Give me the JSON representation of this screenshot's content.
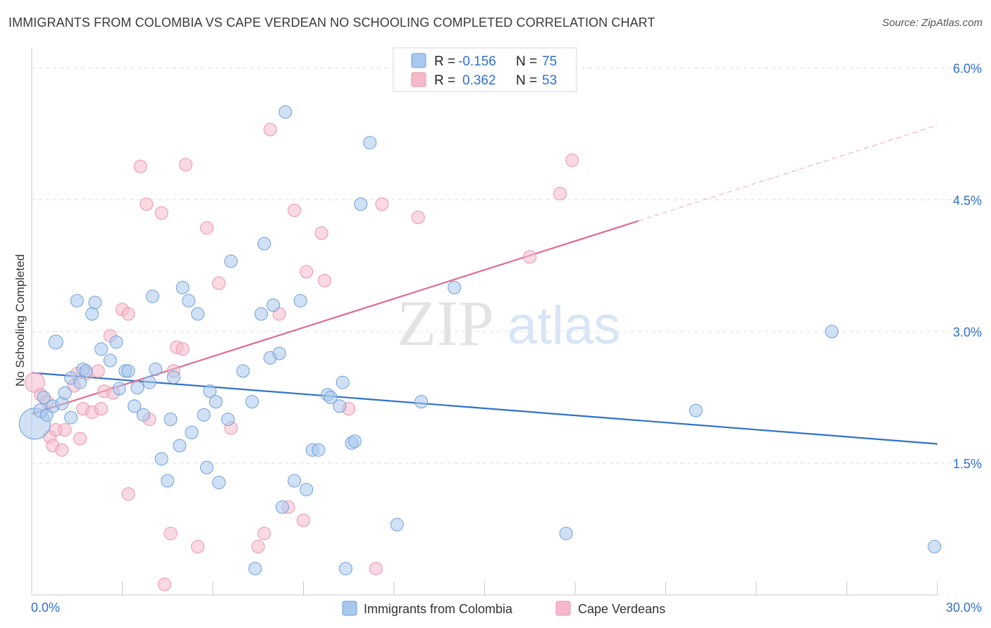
{
  "title": "IMMIGRANTS FROM COLOMBIA VS CAPE VERDEAN NO SCHOOLING COMPLETED CORRELATION CHART",
  "source": "Source: ZipAtlas.com",
  "watermark": {
    "zip": "ZIP",
    "atlas": "atlas"
  },
  "colors": {
    "blue_fill": "#a9c8ee",
    "blue_stroke": "#6f9fd8",
    "blue_line": "#2f72c8",
    "pink_fill": "#f6b9cb",
    "pink_stroke": "#e894ad",
    "pink_line": "#e06b93",
    "value_text": "#2f6fd0",
    "grid": "#dcdcdc"
  },
  "legend_top": {
    "rows": [
      {
        "r_label": "R =",
        "r_value": "-0.156",
        "n_label": "N =",
        "n_value": "75"
      },
      {
        "r_label": "R =",
        "r_value": "0.362",
        "n_label": "N =",
        "n_value": "53"
      }
    ]
  },
  "legend_bottom": [
    "Immigrants from Colombia",
    "Cape Verdeans"
  ],
  "chart_data": {
    "type": "scatter",
    "title": "IMMIGRANTS FROM COLOMBIA VS CAPE VERDEAN NO SCHOOLING COMPLETED CORRELATION CHART",
    "xlabel": "",
    "ylabel": "No Schooling Completed",
    "xlim": [
      0,
      30
    ],
    "ylim": [
      0,
      6.15
    ],
    "x_tick_labels": [
      "0.0%",
      "30.0%"
    ],
    "y_ticks": [
      1.5,
      3.0,
      4.5,
      6.0
    ],
    "y_tick_labels": [
      "1.5%",
      "3.0%",
      "4.5%",
      "6.0%"
    ],
    "grid": true,
    "legend": "bottom",
    "series": [
      {
        "name": "Immigrants from Colombia",
        "color": "#a9c8ee",
        "trend": {
          "x": [
            0,
            30
          ],
          "y": [
            2.53,
            1.72
          ]
        },
        "points": [
          [
            0.1,
            1.95,
            22
          ],
          [
            0.3,
            2.1,
            10
          ],
          [
            0.4,
            2.25,
            9
          ],
          [
            0.5,
            2.05,
            9
          ],
          [
            0.7,
            2.15,
            9
          ],
          [
            0.8,
            2.88,
            10
          ],
          [
            1.0,
            2.18,
            9
          ],
          [
            1.1,
            2.3,
            9
          ],
          [
            1.3,
            2.02,
            9
          ],
          [
            1.3,
            2.47,
            9
          ],
          [
            1.5,
            3.35,
            9
          ],
          [
            1.6,
            2.42,
            9
          ],
          [
            1.7,
            2.57,
            9
          ],
          [
            1.8,
            2.55,
            9
          ],
          [
            2.0,
            3.2,
            9
          ],
          [
            2.1,
            3.33,
            9
          ],
          [
            2.3,
            2.8,
            9
          ],
          [
            2.6,
            2.67,
            9
          ],
          [
            2.8,
            2.88,
            9
          ],
          [
            2.9,
            2.35,
            9
          ],
          [
            3.1,
            2.55,
            9
          ],
          [
            3.2,
            2.55,
            9
          ],
          [
            3.4,
            2.15,
            9
          ],
          [
            3.5,
            2.36,
            9
          ],
          [
            3.7,
            2.05,
            9
          ],
          [
            3.9,
            2.42,
            9
          ],
          [
            4.0,
            3.4,
            9
          ],
          [
            4.1,
            2.57,
            9
          ],
          [
            4.3,
            1.55,
            9
          ],
          [
            4.5,
            1.3,
            9
          ],
          [
            4.6,
            2.0,
            9
          ],
          [
            4.7,
            2.48,
            9
          ],
          [
            4.9,
            1.7,
            9
          ],
          [
            5.0,
            3.5,
            9
          ],
          [
            5.2,
            3.35,
            9
          ],
          [
            5.3,
            1.85,
            9
          ],
          [
            5.5,
            3.2,
            9
          ],
          [
            5.7,
            2.05,
            9
          ],
          [
            5.8,
            1.45,
            9
          ],
          [
            5.9,
            2.32,
            9
          ],
          [
            6.1,
            2.2,
            9
          ],
          [
            6.2,
            1.28,
            9
          ],
          [
            6.5,
            2.0,
            9
          ],
          [
            6.6,
            3.8,
            9
          ],
          [
            7.0,
            2.55,
            9
          ],
          [
            7.3,
            2.2,
            9
          ],
          [
            7.4,
            0.3,
            9
          ],
          [
            7.6,
            3.2,
            9
          ],
          [
            7.7,
            4.0,
            9
          ],
          [
            7.9,
            2.7,
            9
          ],
          [
            8.0,
            3.3,
            9
          ],
          [
            8.2,
            2.75,
            9
          ],
          [
            8.3,
            1.0,
            9
          ],
          [
            8.4,
            5.5,
            9
          ],
          [
            8.7,
            1.3,
            9
          ],
          [
            8.9,
            3.35,
            9
          ],
          [
            9.1,
            1.2,
            9
          ],
          [
            9.3,
            1.65,
            9
          ],
          [
            9.5,
            1.65,
            9
          ],
          [
            9.8,
            2.28,
            9
          ],
          [
            9.9,
            2.25,
            9
          ],
          [
            10.2,
            2.15,
            9
          ],
          [
            10.3,
            2.42,
            9
          ],
          [
            10.4,
            0.3,
            9
          ],
          [
            10.6,
            1.73,
            9
          ],
          [
            10.7,
            1.75,
            9
          ],
          [
            10.9,
            4.45,
            9
          ],
          [
            11.2,
            5.15,
            9
          ],
          [
            12.1,
            0.8,
            9
          ],
          [
            12.9,
            2.2,
            9
          ],
          [
            14.0,
            3.5,
            9
          ],
          [
            17.7,
            0.7,
            9
          ],
          [
            22.0,
            2.1,
            9
          ],
          [
            26.5,
            3.0,
            9
          ],
          [
            29.9,
            0.55,
            9
          ]
        ]
      },
      {
        "name": "Cape Verdeans",
        "color": "#f6b9cb",
        "trend": {
          "x": [
            0,
            20.1
          ],
          "y": [
            2.06,
            4.26
          ],
          "dashed_x": [
            20.1,
            30
          ],
          "dashed_y": [
            4.26,
            5.35
          ]
        },
        "points": [
          [
            0.1,
            2.42,
            14
          ],
          [
            0.3,
            2.28,
            9
          ],
          [
            0.5,
            2.2,
            9
          ],
          [
            0.6,
            1.8,
            9
          ],
          [
            0.7,
            1.7,
            9
          ],
          [
            0.8,
            1.88,
            9
          ],
          [
            1.0,
            1.65,
            9
          ],
          [
            1.1,
            1.88,
            9
          ],
          [
            1.4,
            2.38,
            9
          ],
          [
            1.5,
            2.52,
            9
          ],
          [
            1.6,
            1.78,
            9
          ],
          [
            1.7,
            2.12,
            9
          ],
          [
            1.8,
            2.52,
            9
          ],
          [
            2.0,
            2.08,
            9
          ],
          [
            2.2,
            2.55,
            9
          ],
          [
            2.3,
            2.12,
            9
          ],
          [
            2.4,
            2.32,
            9
          ],
          [
            2.6,
            2.95,
            9
          ],
          [
            2.7,
            2.3,
            9
          ],
          [
            3.0,
            3.25,
            9
          ],
          [
            3.2,
            3.2,
            9
          ],
          [
            3.2,
            1.15,
            9
          ],
          [
            3.6,
            4.88,
            9
          ],
          [
            3.8,
            4.45,
            9
          ],
          [
            3.9,
            2.0,
            9
          ],
          [
            4.3,
            4.35,
            9
          ],
          [
            4.4,
            0.12,
            9
          ],
          [
            4.6,
            0.7,
            9
          ],
          [
            4.7,
            2.55,
            9
          ],
          [
            4.8,
            2.82,
            9
          ],
          [
            5.0,
            2.8,
            9
          ],
          [
            5.1,
            4.9,
            9
          ],
          [
            5.5,
            0.55,
            9
          ],
          [
            5.8,
            4.18,
            9
          ],
          [
            6.2,
            3.55,
            9
          ],
          [
            6.6,
            1.9,
            9
          ],
          [
            7.5,
            0.55,
            9
          ],
          [
            7.7,
            0.7,
            9
          ],
          [
            7.9,
            5.3,
            9
          ],
          [
            8.2,
            3.2,
            9
          ],
          [
            8.5,
            1.0,
            9
          ],
          [
            8.7,
            4.38,
            9
          ],
          [
            9.0,
            0.85,
            9
          ],
          [
            9.1,
            3.68,
            9
          ],
          [
            9.6,
            4.12,
            9
          ],
          [
            9.7,
            3.58,
            9
          ],
          [
            10.5,
            2.12,
            9
          ],
          [
            11.4,
            0.3,
            9
          ],
          [
            11.6,
            4.45,
            9
          ],
          [
            12.8,
            4.3,
            9
          ],
          [
            16.5,
            3.85,
            9
          ],
          [
            17.5,
            4.57,
            9
          ],
          [
            17.9,
            4.95,
            9
          ]
        ]
      }
    ]
  }
}
